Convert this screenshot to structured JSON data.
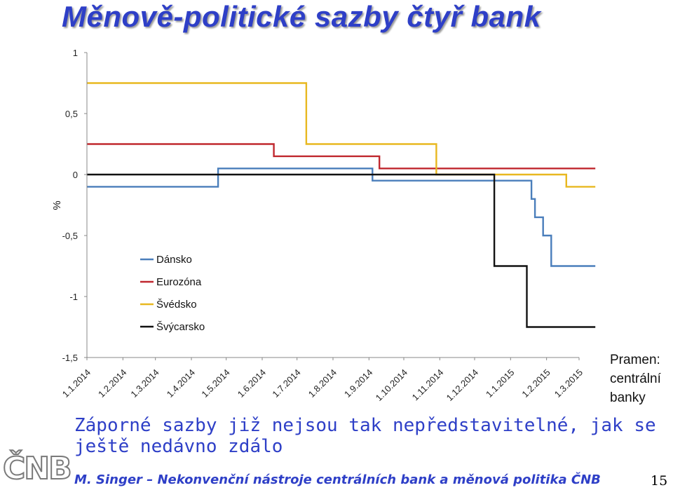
{
  "slide": {
    "title": "Měnově-politické sazby čtyř bank",
    "source": [
      "Pramen:",
      "centrální",
      "banky"
    ],
    "subtitle": "Záporné sazby již nejsou tak nepředstavitelné, jak se ještě nedávno zdálo",
    "footer": "M. Singer – Nekonvenční nástroje centrálních bank a měnová politika ČNB",
    "page_number": "15",
    "logo_text": "ČNB"
  },
  "chart_data": {
    "type": "line",
    "title": "",
    "xlabel": "",
    "ylabel": "%",
    "ylim": [
      -1.5,
      1
    ],
    "yticks": [
      1,
      0.5,
      0,
      -0.5,
      -1,
      -1.5
    ],
    "ytick_labels": [
      "1",
      "0,5",
      "0",
      "-0,5",
      "-1",
      "-1,5"
    ],
    "xlim": [
      "1.1.2014",
      "1.3.2015"
    ],
    "categories": [
      "1.1.2014",
      "1.2.2014",
      "1.3.2014",
      "1.4.2014",
      "1.5.2014",
      "1.6.2014",
      "1.7.2014",
      "1.8.2014",
      "1.9.2014",
      "1.10.2014",
      "1.11.2014",
      "1.12.2014",
      "1.1.2015",
      "1.2.2015",
      "1.3.2015"
    ],
    "grid": false,
    "legend_position": "bottom-left",
    "series": [
      {
        "name": "Dánsko",
        "color": "#4a7ebb",
        "points": [
          [
            "1.1.2014",
            -0.1
          ],
          [
            "24.4.2014",
            -0.1
          ],
          [
            "24.4.2014",
            0.05
          ],
          [
            "4.9.2014",
            0.05
          ],
          [
            "4.9.2014",
            -0.05
          ],
          [
            "19.1.2015",
            -0.05
          ],
          [
            "19.1.2015",
            -0.2
          ],
          [
            "22.1.2015",
            -0.2
          ],
          [
            "22.1.2015",
            -0.35
          ],
          [
            "29.1.2015",
            -0.35
          ],
          [
            "29.1.2015",
            -0.5
          ],
          [
            "5.2.2015",
            -0.5
          ],
          [
            "5.2.2015",
            -0.75
          ],
          [
            "15.3.2015",
            -0.75
          ]
        ]
      },
      {
        "name": "Eurozóna",
        "color": "#c0282f",
        "points": [
          [
            "1.1.2014",
            0.25
          ],
          [
            "11.6.2014",
            0.25
          ],
          [
            "11.6.2014",
            0.15
          ],
          [
            "10.9.2014",
            0.15
          ],
          [
            "10.9.2014",
            0.05
          ],
          [
            "15.3.2015",
            0.05
          ]
        ]
      },
      {
        "name": "Švédsko",
        "color": "#e8b820",
        "points": [
          [
            "1.1.2014",
            0.75
          ],
          [
            "9.7.2014",
            0.75
          ],
          [
            "9.7.2014",
            0.25
          ],
          [
            "29.10.2014",
            0.25
          ],
          [
            "29.10.2014",
            0
          ],
          [
            "18.2.2015",
            0
          ],
          [
            "18.2.2015",
            -0.1
          ],
          [
            "15.3.2015",
            -0.1
          ]
        ]
      },
      {
        "name": "Švýcarsko",
        "color": "#111111",
        "points": [
          [
            "1.1.2014",
            0
          ],
          [
            "18.12.2014",
            0
          ],
          [
            "18.12.2014",
            -0.75
          ],
          [
            "15.1.2015",
            -0.75
          ],
          [
            "15.1.2015",
            -1.25
          ],
          [
            "15.3.2015",
            -1.25
          ]
        ]
      }
    ]
  }
}
